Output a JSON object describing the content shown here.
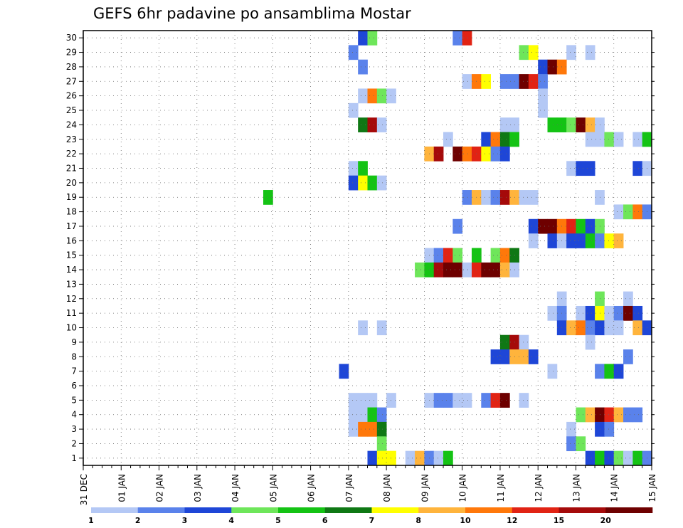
{
  "chart_data": {
    "type": "heatmap",
    "title": "GEFS 6hr padavine po ansamblima Mostar",
    "xlabel": "",
    "ylabel": "",
    "x_ticks": [
      "31 DEC",
      "01 JAN",
      "02 JAN",
      "03 JAN",
      "04 JAN",
      "05 JAN",
      "06 JAN",
      "07 JAN",
      "08 JAN",
      "09 JAN",
      "10 JAN",
      "11 JAN",
      "12 JAN",
      "13 JAN",
      "14 JAN",
      "15 JAN"
    ],
    "y_ticks": [
      "1",
      "2",
      "3",
      "4",
      "5",
      "6",
      "7",
      "8",
      "9",
      "10",
      "11",
      "12",
      "13",
      "14",
      "15",
      "16",
      "17",
      "18",
      "19",
      "20",
      "21",
      "22",
      "23",
      "24",
      "25",
      "26",
      "27",
      "28",
      "29",
      "30"
    ],
    "xlim_days": [
      0,
      15
    ],
    "ylim": [
      0.5,
      30.5
    ],
    "step_hours": 6,
    "grid": true,
    "colorbar": {
      "labels": [
        "1",
        "2",
        "3",
        "4",
        "5",
        "6",
        "7",
        "8",
        "10",
        "12",
        "15",
        "20"
      ],
      "colors": [
        "#b4c8f5",
        "#5a82eb",
        "#1e46d7",
        "#6ee65a",
        "#14c314",
        "#0f7814",
        "#ffff00",
        "#ffb43c",
        "#ff780a",
        "#e12314",
        "#a50a0a",
        "#6e0000"
      ]
    },
    "cells": [
      {
        "member": 30,
        "start": 29,
        "colors": [
          2,
          3
        ]
      },
      {
        "member": 30,
        "start": 39,
        "colors": [
          1,
          9
        ]
      },
      {
        "member": 29,
        "start": 28,
        "colors": [
          1
        ]
      },
      {
        "member": 29,
        "start": 46,
        "colors": [
          3,
          6
        ]
      },
      {
        "member": 29,
        "start": 51,
        "colors": [
          0
        ]
      },
      {
        "member": 29,
        "start": 53,
        "colors": [
          0
        ]
      },
      {
        "member": 28,
        "start": 29,
        "colors": [
          1
        ]
      },
      {
        "member": 28,
        "start": 48,
        "colors": [
          2,
          11,
          8
        ]
      },
      {
        "member": 27,
        "start": 40,
        "colors": [
          0,
          8,
          6
        ]
      },
      {
        "member": 27,
        "start": 44,
        "colors": [
          1,
          1,
          11,
          9,
          1
        ]
      },
      {
        "member": 26,
        "start": 29,
        "colors": [
          0,
          8,
          3,
          0
        ]
      },
      {
        "member": 26,
        "start": 48,
        "colors": [
          0
        ]
      },
      {
        "member": 25,
        "start": 28,
        "colors": [
          0
        ]
      },
      {
        "member": 25,
        "start": 48,
        "colors": [
          0
        ]
      },
      {
        "member": 24,
        "start": 29,
        "colors": [
          5,
          10,
          0
        ]
      },
      {
        "member": 24,
        "start": 44,
        "colors": [
          0,
          0
        ]
      },
      {
        "member": 24,
        "start": 49,
        "colors": [
          4,
          4,
          3,
          11,
          7,
          0
        ]
      },
      {
        "member": 23,
        "start": 38,
        "colors": [
          0
        ]
      },
      {
        "member": 23,
        "start": 42,
        "colors": [
          2,
          8,
          5,
          4
        ]
      },
      {
        "member": 23,
        "start": 53,
        "colors": [
          0,
          0,
          3,
          0
        ]
      },
      {
        "member": 23,
        "start": 58,
        "colors": [
          0,
          4
        ]
      },
      {
        "member": 22,
        "start": 36,
        "colors": [
          7,
          10
        ]
      },
      {
        "member": 22,
        "start": 39,
        "colors": [
          11,
          8,
          9,
          6,
          1,
          2
        ]
      },
      {
        "member": 21,
        "start": 28,
        "colors": [
          0,
          4
        ]
      },
      {
        "member": 21,
        "start": 51,
        "colors": [
          0,
          2,
          2
        ]
      },
      {
        "member": 21,
        "start": 58,
        "colors": [
          2,
          0
        ]
      },
      {
        "member": 20,
        "start": 28,
        "colors": [
          2,
          6,
          4,
          0
        ]
      },
      {
        "member": 19,
        "start": 19,
        "colors": [
          4
        ]
      },
      {
        "member": 19,
        "start": 40,
        "colors": [
          1,
          7,
          0,
          1,
          10,
          7,
          0,
          0
        ]
      },
      {
        "member": 19,
        "start": 54,
        "colors": [
          0
        ]
      },
      {
        "member": 18,
        "start": 56,
        "colors": [
          0,
          3,
          8,
          1
        ]
      },
      {
        "member": 17,
        "start": 39,
        "colors": [
          1
        ]
      },
      {
        "member": 17,
        "start": 47,
        "colors": [
          2,
          11,
          11,
          8,
          9,
          4,
          2,
          3
        ]
      },
      {
        "member": 16,
        "start": 47,
        "colors": [
          0
        ]
      },
      {
        "member": 16,
        "start": 49,
        "colors": [
          2,
          0,
          2,
          2,
          4,
          1,
          6,
          7
        ]
      },
      {
        "member": 15,
        "start": 36,
        "colors": [
          0,
          1,
          9,
          3
        ]
      },
      {
        "member": 15,
        "start": 41,
        "colors": [
          4
        ]
      },
      {
        "member": 15,
        "start": 43,
        "colors": [
          3,
          8,
          5
        ]
      },
      {
        "member": 14,
        "start": 35,
        "colors": [
          3,
          4,
          10,
          11,
          11,
          0,
          9,
          11,
          11,
          7,
          0
        ]
      },
      {
        "member": 12,
        "start": 50,
        "colors": [
          0
        ]
      },
      {
        "member": 12,
        "start": 54,
        "colors": [
          3
        ]
      },
      {
        "member": 12,
        "start": 57,
        "colors": [
          0
        ]
      },
      {
        "member": 11,
        "start": 49,
        "colors": [
          0,
          1
        ]
      },
      {
        "member": 11,
        "start": 52,
        "colors": [
          0,
          2,
          6,
          0,
          1,
          11,
          2
        ]
      },
      {
        "member": 10,
        "start": 29,
        "colors": [
          0
        ]
      },
      {
        "member": 10,
        "start": 31,
        "colors": [
          0
        ]
      },
      {
        "member": 10,
        "start": 50,
        "colors": [
          2,
          7,
          8,
          1,
          2,
          0,
          0
        ]
      },
      {
        "member": 10,
        "start": 58,
        "colors": [
          7,
          2
        ]
      },
      {
        "member": 9,
        "start": 44,
        "colors": [
          5,
          10,
          0
        ]
      },
      {
        "member": 9,
        "start": 53,
        "colors": [
          0
        ]
      },
      {
        "member": 8,
        "start": 43,
        "colors": [
          2,
          2,
          7,
          7,
          2
        ]
      },
      {
        "member": 8,
        "start": 57,
        "colors": [
          1
        ]
      },
      {
        "member": 7,
        "start": 27,
        "colors": [
          2
        ]
      },
      {
        "member": 7,
        "start": 49,
        "colors": [
          0
        ]
      },
      {
        "member": 7,
        "start": 54,
        "colors": [
          1,
          4,
          2
        ]
      },
      {
        "member": 5,
        "start": 28,
        "colors": [
          0,
          0,
          0
        ]
      },
      {
        "member": 5,
        "start": 32,
        "colors": [
          0
        ]
      },
      {
        "member": 5,
        "start": 36,
        "colors": [
          0,
          1,
          1,
          0,
          0
        ]
      },
      {
        "member": 5,
        "start": 42,
        "colors": [
          1,
          9,
          11
        ]
      },
      {
        "member": 5,
        "start": 46,
        "colors": [
          0
        ]
      },
      {
        "member": 4,
        "start": 28,
        "colors": [
          0,
          0,
          4,
          1
        ]
      },
      {
        "member": 4,
        "start": 52,
        "colors": [
          3,
          7,
          11,
          9,
          7,
          1,
          1
        ]
      },
      {
        "member": 3,
        "start": 28,
        "colors": [
          0,
          8,
          8,
          5
        ]
      },
      {
        "member": 3,
        "start": 51,
        "colors": [
          0
        ]
      },
      {
        "member": 3,
        "start": 54,
        "colors": [
          2,
          1
        ]
      },
      {
        "member": 2,
        "start": 31,
        "colors": [
          3
        ]
      },
      {
        "member": 2,
        "start": 51,
        "colors": [
          1,
          3
        ]
      },
      {
        "member": 1,
        "start": 30,
        "colors": [
          2,
          6,
          6
        ]
      },
      {
        "member": 1,
        "start": 34,
        "colors": [
          0,
          7,
          1,
          0,
          4
        ]
      },
      {
        "member": 1,
        "start": 53,
        "colors": [
          2,
          4,
          2,
          3,
          0,
          4,
          1
        ]
      }
    ]
  }
}
